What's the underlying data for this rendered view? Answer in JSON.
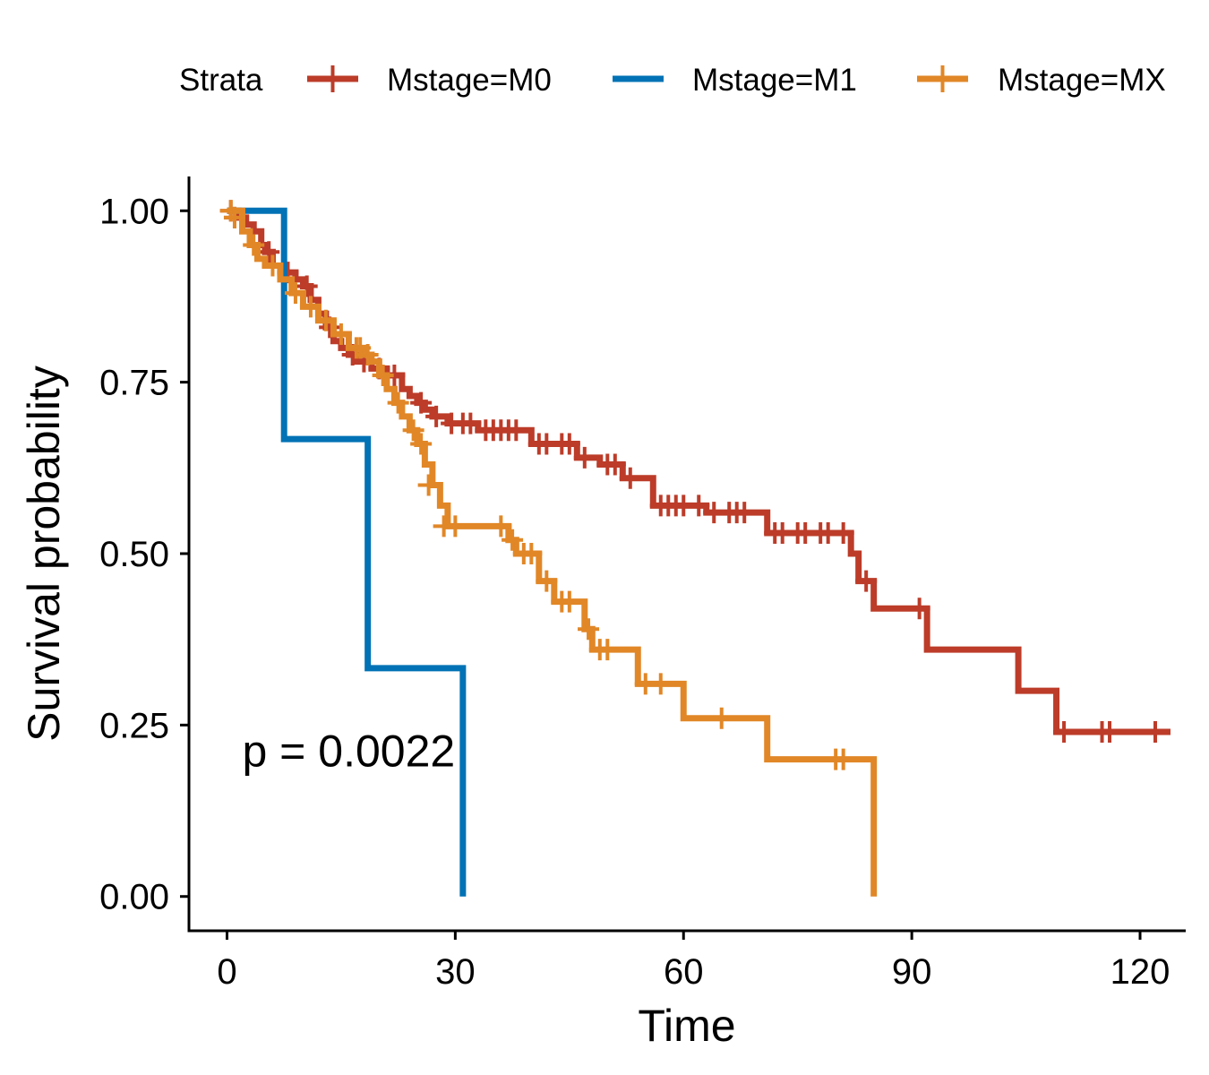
{
  "chart_data": {
    "type": "line",
    "subtype": "kaplan-meier",
    "xlabel": "Time",
    "ylabel": "Survival probability",
    "xlim": [
      -5,
      126
    ],
    "ylim": [
      -0.05,
      1.05
    ],
    "xticks": [
      0,
      30,
      60,
      90,
      120
    ],
    "yticks": [
      0.0,
      0.25,
      0.5,
      0.75,
      1.0
    ],
    "xtick_labels": [
      "0",
      "30",
      "60",
      "90",
      "120"
    ],
    "ytick_labels": [
      "0.00",
      "0.25",
      "0.50",
      "0.75",
      "1.00"
    ],
    "annotation": "p = 0.0022",
    "annotation_pos": [
      2,
      0.19
    ],
    "legend_title": "Strata",
    "legend_position": "top",
    "grid": false,
    "series": [
      {
        "name": "Mstage=M0",
        "color": "#BC3C29",
        "steps": [
          [
            0,
            1.0
          ],
          [
            1.5,
            0.99
          ],
          [
            2.5,
            0.98
          ],
          [
            3.5,
            0.97
          ],
          [
            4.5,
            0.95
          ],
          [
            5,
            0.94
          ],
          [
            6,
            0.92
          ],
          [
            7,
            0.91
          ],
          [
            9,
            0.9
          ],
          [
            10,
            0.89
          ],
          [
            11,
            0.87
          ],
          [
            12,
            0.85
          ],
          [
            13,
            0.83
          ],
          [
            14,
            0.81
          ],
          [
            15,
            0.8
          ],
          [
            16,
            0.79
          ],
          [
            17,
            0.78
          ],
          [
            19,
            0.77
          ],
          [
            21,
            0.76
          ],
          [
            23,
            0.74
          ],
          [
            24,
            0.73
          ],
          [
            25,
            0.72
          ],
          [
            26,
            0.71
          ],
          [
            27,
            0.7
          ],
          [
            29,
            0.69
          ],
          [
            33,
            0.68
          ],
          [
            40,
            0.66
          ],
          [
            46,
            0.64
          ],
          [
            49,
            0.63
          ],
          [
            52,
            0.61
          ],
          [
            56,
            0.57
          ],
          [
            63,
            0.56
          ],
          [
            71,
            0.53
          ],
          [
            82,
            0.5
          ],
          [
            83,
            0.46
          ],
          [
            85,
            0.42
          ],
          [
            92,
            0.36
          ],
          [
            104,
            0.3
          ],
          [
            109,
            0.24
          ],
          [
            124,
            0.24
          ]
        ],
        "censors": [
          [
            0.5,
            1.0
          ],
          [
            1,
            0.99
          ],
          [
            5.5,
            0.94
          ],
          [
            8,
            0.91
          ],
          [
            10.5,
            0.89
          ],
          [
            13.5,
            0.83
          ],
          [
            16.5,
            0.79
          ],
          [
            18,
            0.78
          ],
          [
            20,
            0.77
          ],
          [
            22,
            0.76
          ],
          [
            25.5,
            0.72
          ],
          [
            27.5,
            0.7
          ],
          [
            29.5,
            0.69
          ],
          [
            31,
            0.69
          ],
          [
            32,
            0.69
          ],
          [
            34,
            0.68
          ],
          [
            35,
            0.68
          ],
          [
            36,
            0.68
          ],
          [
            37,
            0.68
          ],
          [
            38,
            0.68
          ],
          [
            41,
            0.66
          ],
          [
            42,
            0.66
          ],
          [
            44,
            0.66
          ],
          [
            45,
            0.66
          ],
          [
            47,
            0.64
          ],
          [
            50,
            0.63
          ],
          [
            51,
            0.63
          ],
          [
            53,
            0.61
          ],
          [
            57,
            0.57
          ],
          [
            58,
            0.57
          ],
          [
            59,
            0.57
          ],
          [
            60,
            0.57
          ],
          [
            62,
            0.57
          ],
          [
            64,
            0.56
          ],
          [
            66,
            0.56
          ],
          [
            67,
            0.56
          ],
          [
            68,
            0.56
          ],
          [
            72,
            0.53
          ],
          [
            73,
            0.53
          ],
          [
            75,
            0.53
          ],
          [
            76,
            0.53
          ],
          [
            78,
            0.53
          ],
          [
            79,
            0.53
          ],
          [
            81,
            0.53
          ],
          [
            84,
            0.46
          ],
          [
            91,
            0.42
          ],
          [
            110,
            0.24
          ],
          [
            115,
            0.24
          ],
          [
            116,
            0.24
          ],
          [
            122,
            0.24
          ]
        ]
      },
      {
        "name": "Mstage=M1",
        "color": "#0072B5",
        "steps": [
          [
            0,
            1.0
          ],
          [
            7.5,
            0.667
          ],
          [
            18.5,
            0.333
          ],
          [
            31,
            0.0
          ]
        ],
        "censors": []
      },
      {
        "name": "Mstage=MX",
        "color": "#E18727",
        "steps": [
          [
            0,
            1.0
          ],
          [
            2,
            0.97
          ],
          [
            3,
            0.95
          ],
          [
            4,
            0.93
          ],
          [
            5,
            0.92
          ],
          [
            7,
            0.9
          ],
          [
            8.5,
            0.88
          ],
          [
            10,
            0.86
          ],
          [
            12,
            0.84
          ],
          [
            14,
            0.82
          ],
          [
            16,
            0.8
          ],
          [
            18,
            0.79
          ],
          [
            19,
            0.78
          ],
          [
            20,
            0.76
          ],
          [
            21,
            0.74
          ],
          [
            22,
            0.72
          ],
          [
            23,
            0.7
          ],
          [
            24,
            0.68
          ],
          [
            25,
            0.66
          ],
          [
            26,
            0.63
          ],
          [
            27,
            0.6
          ],
          [
            28,
            0.57
          ],
          [
            29,
            0.54
          ],
          [
            37,
            0.52
          ],
          [
            38,
            0.5
          ],
          [
            41,
            0.46
          ],
          [
            43,
            0.43
          ],
          [
            47,
            0.39
          ],
          [
            48,
            0.36
          ],
          [
            54,
            0.31
          ],
          [
            60,
            0.26
          ],
          [
            71,
            0.2
          ],
          [
            85,
            0.0
          ]
        ],
        "censors": [
          [
            0.5,
            1.0
          ],
          [
            1,
            0.99
          ],
          [
            3.5,
            0.95
          ],
          [
            6,
            0.92
          ],
          [
            9,
            0.88
          ],
          [
            11,
            0.86
          ],
          [
            13,
            0.84
          ],
          [
            15,
            0.82
          ],
          [
            17,
            0.8
          ],
          [
            17.5,
            0.8
          ],
          [
            18.5,
            0.79
          ],
          [
            20.5,
            0.76
          ],
          [
            22.5,
            0.72
          ],
          [
            24.5,
            0.68
          ],
          [
            25.5,
            0.66
          ],
          [
            26.5,
            0.6
          ],
          [
            28.5,
            0.54
          ],
          [
            30,
            0.54
          ],
          [
            36,
            0.54
          ],
          [
            37.5,
            0.52
          ],
          [
            39,
            0.5
          ],
          [
            40,
            0.5
          ],
          [
            42,
            0.46
          ],
          [
            44,
            0.43
          ],
          [
            45,
            0.43
          ],
          [
            47.5,
            0.39
          ],
          [
            49,
            0.36
          ],
          [
            50,
            0.36
          ],
          [
            55,
            0.31
          ],
          [
            57,
            0.31
          ],
          [
            65,
            0.26
          ],
          [
            80,
            0.2
          ],
          [
            81,
            0.2
          ]
        ]
      }
    ]
  }
}
